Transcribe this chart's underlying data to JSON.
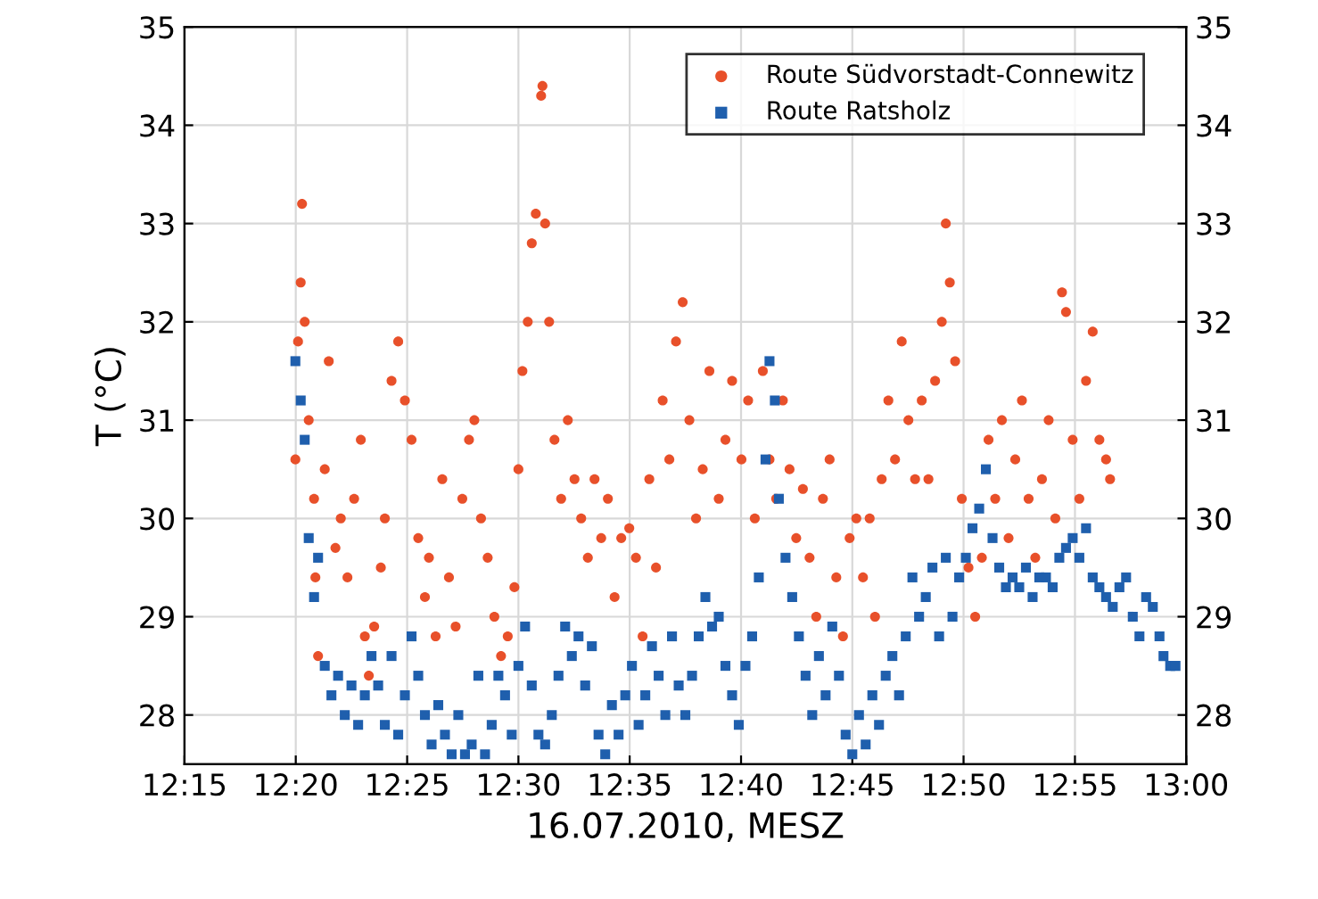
{
  "chart_data": {
    "type": "scatter",
    "xlabel": "16.07.2010, MESZ",
    "ylabel": "T (°C)",
    "xlim": [
      12.25,
      13.0
    ],
    "xticks": [
      {
        "value": 12.25,
        "label": "12:15"
      },
      {
        "value": 12.3333,
        "label": "12:20"
      },
      {
        "value": 12.4167,
        "label": "12:25"
      },
      {
        "value": 12.5,
        "label": "12:30"
      },
      {
        "value": 12.5833,
        "label": "12:35"
      },
      {
        "value": 12.6667,
        "label": "12:40"
      },
      {
        "value": 12.75,
        "label": "12:45"
      },
      {
        "value": 12.8333,
        "label": "12:50"
      },
      {
        "value": 12.9167,
        "label": "12:55"
      },
      {
        "value": 13.0,
        "label": "13:00"
      }
    ],
    "ylim": [
      27.5,
      35
    ],
    "yticks": [
      28,
      29,
      30,
      31,
      32,
      33,
      34,
      35
    ],
    "y2lim": [
      27.5,
      35
    ],
    "y2ticks": [
      28,
      29,
      30,
      31,
      32,
      33,
      34,
      35
    ],
    "grid": true,
    "legend": "top right",
    "series": [
      {
        "name": "Route Südvorstadt-Connewitz",
        "color": "#e8502a",
        "marker": "circle",
        "x": [
          12.333,
          12.335,
          12.337,
          12.338,
          12.34,
          12.343,
          12.347,
          12.348,
          12.35,
          12.355,
          12.358,
          12.363,
          12.367,
          12.372,
          12.377,
          12.382,
          12.385,
          12.388,
          12.392,
          12.397,
          12.4,
          12.405,
          12.41,
          12.415,
          12.42,
          12.425,
          12.43,
          12.433,
          12.438,
          12.443,
          12.448,
          12.453,
          12.458,
          12.463,
          12.467,
          12.472,
          12.477,
          12.482,
          12.487,
          12.492,
          12.497,
          12.5,
          12.503,
          12.507,
          12.51,
          12.513,
          12.517,
          12.518,
          12.52,
          12.523,
          12.527,
          12.532,
          12.537,
          12.542,
          12.547,
          12.552,
          12.557,
          12.562,
          12.567,
          12.572,
          12.577,
          12.583,
          12.588,
          12.593,
          12.598,
          12.603,
          12.608,
          12.613,
          12.618,
          12.623,
          12.628,
          12.633,
          12.638,
          12.643,
          12.65,
          12.655,
          12.66,
          12.667,
          12.672,
          12.677,
          12.683,
          12.688,
          12.693,
          12.698,
          12.703,
          12.708,
          12.713,
          12.718,
          12.723,
          12.728,
          12.733,
          12.738,
          12.743,
          12.748,
          12.753,
          12.758,
          12.763,
          12.767,
          12.772,
          12.777,
          12.782,
          12.787,
          12.792,
          12.797,
          12.802,
          12.807,
          12.812,
          12.817,
          12.82,
          12.823,
          12.827,
          12.832,
          12.837,
          12.842,
          12.847,
          12.852,
          12.857,
          12.862,
          12.867,
          12.872,
          12.877,
          12.882,
          12.887,
          12.892,
          12.897,
          12.902,
          12.907,
          12.91,
          12.915,
          12.92,
          12.925,
          12.93,
          12.935,
          12.94,
          12.943
        ],
        "values": [
          30.6,
          31.8,
          32.4,
          33.2,
          32.0,
          31.0,
          30.2,
          29.4,
          28.6,
          30.5,
          31.6,
          29.7,
          30.0,
          29.4,
          30.2,
          30.8,
          28.8,
          28.4,
          28.9,
          29.5,
          30.0,
          31.4,
          31.8,
          31.2,
          30.8,
          29.8,
          29.2,
          29.6,
          28.8,
          30.4,
          29.4,
          28.9,
          30.2,
          30.8,
          31.0,
          30.0,
          29.6,
          29.0,
          28.6,
          28.8,
          29.3,
          30.5,
          31.5,
          32.0,
          32.8,
          33.1,
          34.3,
          34.4,
          33.0,
          32.0,
          30.8,
          30.2,
          31.0,
          30.4,
          30.0,
          29.6,
          30.4,
          29.8,
          30.2,
          29.2,
          29.8,
          29.9,
          29.6,
          28.8,
          30.4,
          29.5,
          31.2,
          30.6,
          31.8,
          32.2,
          31.0,
          30.0,
          30.5,
          31.5,
          30.2,
          30.8,
          31.4,
          30.6,
          31.2,
          30.0,
          31.5,
          30.6,
          30.2,
          31.2,
          30.5,
          29.8,
          30.3,
          29.6,
          29.0,
          30.2,
          30.6,
          29.4,
          28.8,
          29.8,
          30.0,
          29.4,
          30.0,
          29.0,
          30.4,
          31.2,
          30.6,
          31.8,
          31.0,
          30.4,
          31.2,
          30.4,
          31.4,
          32.0,
          33.0,
          32.4,
          31.6,
          30.2,
          29.5,
          29.0,
          29.6,
          30.8,
          30.2,
          31.0,
          29.8,
          30.6,
          31.2,
          30.2,
          29.6,
          30.4,
          31.0,
          30.0,
          32.3,
          32.1,
          30.8,
          30.2,
          31.4,
          31.9,
          30.8,
          30.6,
          30.4
        ]
      },
      {
        "name": "Route Ratsholz",
        "color": "#1f5fad",
        "marker": "square",
        "x": [
          12.333,
          12.337,
          12.34,
          12.343,
          12.347,
          12.35,
          12.355,
          12.36,
          12.365,
          12.37,
          12.375,
          12.38,
          12.385,
          12.39,
          12.395,
          12.4,
          12.405,
          12.41,
          12.415,
          12.42,
          12.425,
          12.43,
          12.435,
          12.44,
          12.445,
          12.45,
          12.455,
          12.46,
          12.465,
          12.47,
          12.475,
          12.48,
          12.485,
          12.49,
          12.495,
          12.5,
          12.505,
          12.51,
          12.515,
          12.52,
          12.525,
          12.53,
          12.535,
          12.54,
          12.545,
          12.55,
          12.555,
          12.56,
          12.565,
          12.57,
          12.575,
          12.58,
          12.585,
          12.59,
          12.595,
          12.6,
          12.605,
          12.61,
          12.615,
          12.62,
          12.625,
          12.63,
          12.635,
          12.64,
          12.645,
          12.65,
          12.655,
          12.66,
          12.665,
          12.67,
          12.675,
          12.68,
          12.685,
          12.688,
          12.692,
          12.695,
          12.7,
          12.705,
          12.71,
          12.715,
          12.72,
          12.725,
          12.73,
          12.735,
          12.74,
          12.745,
          12.75,
          12.755,
          12.76,
          12.765,
          12.77,
          12.775,
          12.78,
          12.785,
          12.79,
          12.795,
          12.8,
          12.805,
          12.81,
          12.815,
          12.82,
          12.825,
          12.83,
          12.835,
          12.84,
          12.845,
          12.85,
          12.855,
          12.86,
          12.865,
          12.87,
          12.875,
          12.88,
          12.885,
          12.89,
          12.895,
          12.9,
          12.905,
          12.91,
          12.915,
          12.92,
          12.925,
          12.93,
          12.935,
          12.94,
          12.945,
          12.95,
          12.955,
          12.96,
          12.965,
          12.97,
          12.975,
          12.98,
          12.983,
          12.988,
          12.992
        ],
        "values": [
          31.6,
          31.2,
          30.8,
          29.8,
          29.2,
          29.6,
          28.5,
          28.2,
          28.4,
          28.0,
          28.3,
          27.9,
          28.2,
          28.6,
          28.3,
          27.9,
          28.6,
          27.8,
          28.2,
          28.8,
          28.4,
          28.0,
          27.7,
          28.1,
          27.8,
          27.6,
          28.0,
          27.6,
          27.7,
          28.4,
          27.6,
          27.9,
          28.4,
          28.2,
          27.8,
          28.5,
          28.9,
          28.3,
          27.8,
          27.7,
          28.0,
          28.4,
          28.9,
          28.6,
          28.8,
          28.3,
          28.7,
          27.8,
          27.6,
          28.1,
          27.8,
          28.2,
          28.5,
          27.9,
          28.2,
          28.7,
          28.4,
          28.0,
          28.8,
          28.3,
          28.0,
          28.4,
          28.8,
          29.2,
          28.9,
          29.0,
          28.5,
          28.2,
          27.9,
          28.5,
          28.8,
          29.4,
          30.6,
          31.6,
          31.2,
          30.2,
          29.6,
          29.2,
          28.8,
          28.4,
          28.0,
          28.6,
          28.2,
          28.9,
          28.4,
          27.8,
          27.6,
          28.0,
          27.7,
          28.2,
          27.9,
          28.4,
          28.6,
          28.2,
          28.8,
          29.4,
          29.0,
          29.2,
          29.5,
          28.8,
          29.6,
          29.0,
          29.4,
          29.6,
          29.9,
          30.1,
          30.5,
          29.8,
          29.5,
          29.3,
          29.4,
          29.3,
          29.5,
          29.2,
          29.4,
          29.4,
          29.3,
          29.6,
          29.7,
          29.8,
          29.6,
          29.9,
          29.4,
          29.3,
          29.2,
          29.1,
          29.3,
          29.4,
          29.0,
          28.8,
          29.2,
          29.1,
          28.8,
          28.6,
          28.5,
          28.5
        ]
      }
    ]
  }
}
